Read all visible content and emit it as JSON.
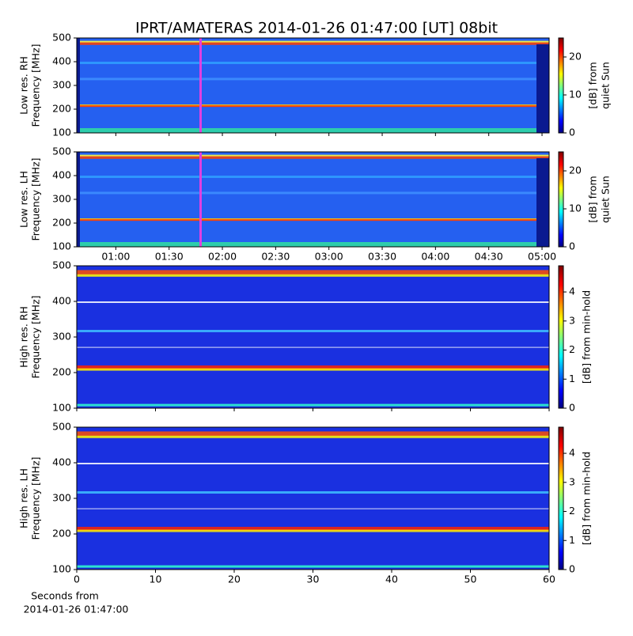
{
  "title": "IPRT/AMATERAS 2014-01-26 01:47:00 [UT]   08bit",
  "chart_data": [
    {
      "type": "heatmap",
      "ylabel": [
        "Low res. RH",
        "Frequency [MHz]"
      ],
      "ylim": [
        100,
        500
      ],
      "yticks": [
        100,
        200,
        300,
        400,
        500
      ],
      "xlim": [
        "00:38",
        "05:04"
      ],
      "xticks": [
        "01:00",
        "01:30",
        "02:00",
        "02:30",
        "03:00",
        "03:30",
        "04:00",
        "04:30",
        "05:00"
      ],
      "xticklabels_shown": false,
      "colorbar_label": [
        "[dB] from",
        "quiet Sun"
      ],
      "clim": [
        0,
        25
      ],
      "cticks": [
        0,
        10,
        20
      ],
      "colormap": "jet"
    },
    {
      "type": "heatmap",
      "ylabel": [
        "Low res. LH",
        "Frequency [MHz]"
      ],
      "ylim": [
        100,
        500
      ],
      "yticks": [
        100,
        200,
        300,
        400,
        500
      ],
      "xlim": [
        "00:38",
        "05:04"
      ],
      "xticks": [
        "01:00",
        "01:30",
        "02:00",
        "02:30",
        "03:00",
        "03:30",
        "04:00",
        "04:30",
        "05:00"
      ],
      "xticklabels_shown": true,
      "colorbar_label": [
        "[dB] from",
        "quiet Sun"
      ],
      "clim": [
        0,
        25
      ],
      "cticks": [
        0,
        10,
        20
      ],
      "colormap": "jet"
    },
    {
      "type": "heatmap",
      "ylabel": [
        "High res. RH",
        "Frequency [MHz]"
      ],
      "ylim": [
        100,
        500
      ],
      "yticks": [
        100,
        200,
        300,
        400,
        500
      ],
      "xlim": [
        0,
        60
      ],
      "xticks": [
        0,
        10,
        20,
        30,
        40,
        50,
        60
      ],
      "xticklabels_shown": false,
      "colorbar_label": [
        "[dB] from min-hold"
      ],
      "clim": [
        0,
        4.9
      ],
      "cticks": [
        0,
        1,
        2,
        3,
        4
      ],
      "colormap": "jet"
    },
    {
      "type": "heatmap",
      "ylabel": [
        "High res. LH",
        "Frequency [MHz]"
      ],
      "ylim": [
        100,
        500
      ],
      "yticks": [
        100,
        200,
        300,
        400,
        500
      ],
      "xlim": [
        0,
        60
      ],
      "xticks": [
        0,
        10,
        20,
        30,
        40,
        50,
        60
      ],
      "xticklabels_shown": true,
      "xlabel": [
        "Seconds from",
        "2014-01-26 01:47:00"
      ],
      "colorbar_label": [
        "[dB] from min-hold"
      ],
      "clim": [
        0,
        4.9
      ],
      "cticks": [
        0,
        1,
        2,
        3,
        4
      ],
      "colormap": "jet"
    }
  ]
}
